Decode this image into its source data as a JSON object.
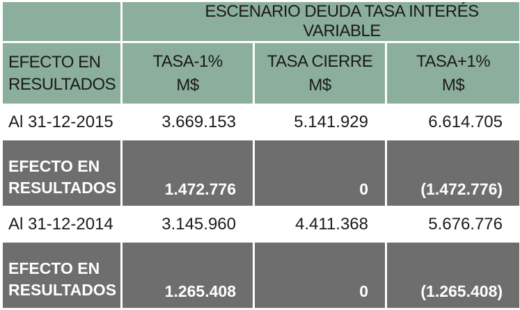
{
  "table": {
    "title": "ESCENARIO DEUDA TASA INTERÉS VARIABLE",
    "header": {
      "label_line1": "EFECTO EN",
      "label_line2": "RESULTADOS",
      "columns": [
        {
          "line1": "TASA-1%",
          "line2": "M$"
        },
        {
          "line1": "TASA CIERRE",
          "line2": "M$"
        },
        {
          "line1": "TASA+1%",
          "line2": "M$"
        }
      ]
    },
    "rows": [
      {
        "label": "Al 31-12-2015",
        "values": [
          "3.669.153",
          "5.141.929",
          "6.614.705"
        ]
      },
      {
        "label_line1": "EFECTO EN",
        "label_line2": "RESULTADOS",
        "values": [
          "1.472.776",
          "0",
          "(1.472.776)"
        ]
      },
      {
        "label": "Al 31-12-2014",
        "values": [
          "3.145.960",
          "4.411.368",
          "5.676.776"
        ]
      },
      {
        "label_line1": "EFECTO EN",
        "label_line2": "RESULTADOS",
        "values": [
          "1.265.408",
          "0",
          "(1.265.408)"
        ]
      }
    ]
  },
  "colors": {
    "header_green": "#8bae9d",
    "effect_gray": "#6e6e6e",
    "text_dark": "#1a1a1a",
    "text_light": "#ffffff"
  }
}
